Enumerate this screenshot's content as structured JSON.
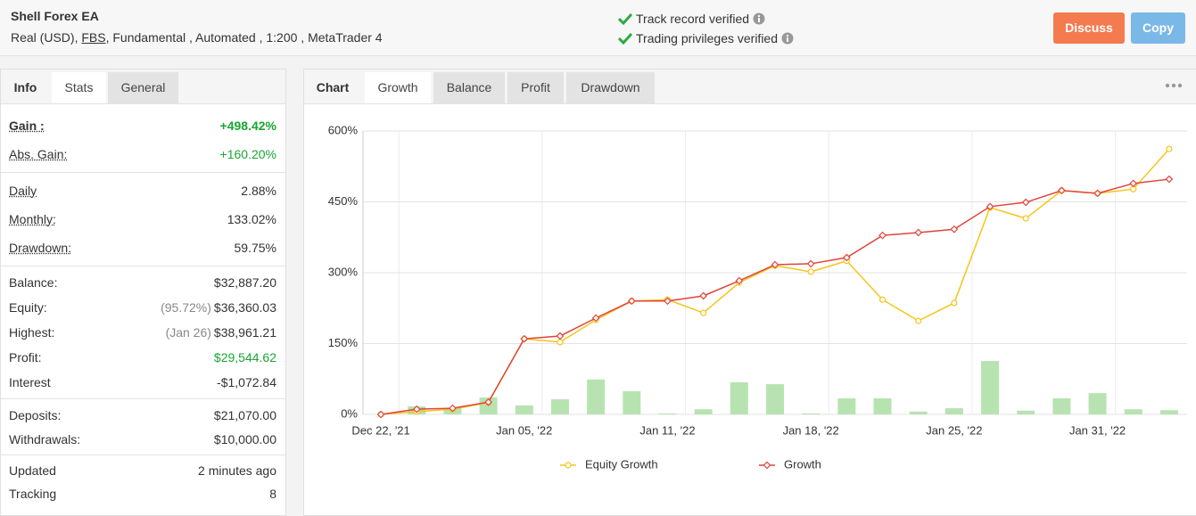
{
  "header": {
    "title": "Shell Forex EA",
    "account": {
      "prefix": "Real (USD),",
      "broker": "FBS",
      "suffix": ", Fundamental , Automated , 1:200 , MetaTrader 4"
    },
    "verifications": [
      "Track record verified",
      "Trading privileges verified"
    ],
    "buttons": [
      "Discuss",
      "Copy"
    ]
  },
  "left_panel": {
    "tabs": [
      "Info",
      "Stats",
      "General"
    ],
    "groups": [
      [
        {
          "label": "Gain :",
          "value": "+498.42%"
        },
        {
          "label": "Abs. Gain:",
          "value": "+160.20%"
        }
      ],
      [
        {
          "label": "Daily",
          "value": "2.88%"
        },
        {
          "label": "Monthly:",
          "value": "133.02%"
        },
        {
          "label": "Drawdown:",
          "value": "59.75%"
        }
      ],
      [
        {
          "label": "Balance:",
          "value": "$32,887.20"
        },
        {
          "label": "Equity:",
          "note": "(95.72%)",
          "value": "$36,360.03"
        },
        {
          "label": "Highest:",
          "note": "(Jan 26)",
          "value": "$38,961.21"
        },
        {
          "label": "Profit:",
          "value": "$29,544.62"
        },
        {
          "label": "Interest",
          "value": "-$1,072.84"
        }
      ],
      [
        {
          "label": "Deposits:",
          "value": "$21,070.00"
        },
        {
          "label": "Withdrawals:",
          "value": "$10,000.00"
        }
      ],
      [
        {
          "label": "Updated",
          "value": "2 minutes ago"
        },
        {
          "label": "Tracking",
          "value": "8"
        }
      ]
    ]
  },
  "chart_panel": {
    "tabs": [
      "Chart",
      "Growth",
      "Balance",
      "Profit",
      "Drawdown"
    ]
  },
  "chart_data": {
    "type": "line",
    "categories": [
      "Dec 22, '21",
      null,
      null,
      null,
      "Jan 05, '22",
      null,
      null,
      null,
      "Jan 11, '22",
      null,
      null,
      null,
      "Jan 18, '22",
      null,
      null,
      null,
      "Jan 25, '22",
      null,
      null,
      null,
      "Jan 31, '22",
      null,
      null
    ],
    "series": [
      {
        "type": "bar",
        "color": "#b7e3b1",
        "values": [
          null,
          17,
          13,
          36,
          19,
          32,
          74,
          49,
          2,
          11,
          68,
          64,
          2,
          34,
          34,
          6,
          13,
          113,
          8,
          34,
          45,
          11,
          9
        ]
      },
      {
        "name": "Equity Growth",
        "color": "#f5c518",
        "marker": "circle",
        "values": [
          0,
          6,
          11,
          25,
          160,
          153,
          200,
          240,
          243,
          215,
          279,
          315,
          302,
          325,
          243,
          198,
          236,
          438,
          415,
          474,
          468,
          477,
          562
        ]
      },
      {
        "name": "Growth",
        "color": "#e0443a",
        "marker": "diamond",
        "values": [
          0,
          11,
          13,
          26,
          160,
          166,
          204,
          240,
          240,
          251,
          283,
          317,
          319,
          332,
          379,
          385,
          392,
          440,
          449,
          474,
          468,
          489,
          498
        ]
      }
    ],
    "ylim": [
      0,
      600
    ],
    "yticks": [
      {
        "value": 0,
        "label": "0%"
      },
      {
        "value": 150,
        "label": "150%"
      },
      {
        "value": 300,
        "label": "300%"
      },
      {
        "value": 450,
        "label": "450%"
      },
      {
        "value": 600,
        "label": "600%"
      }
    ],
    "grid": true
  }
}
